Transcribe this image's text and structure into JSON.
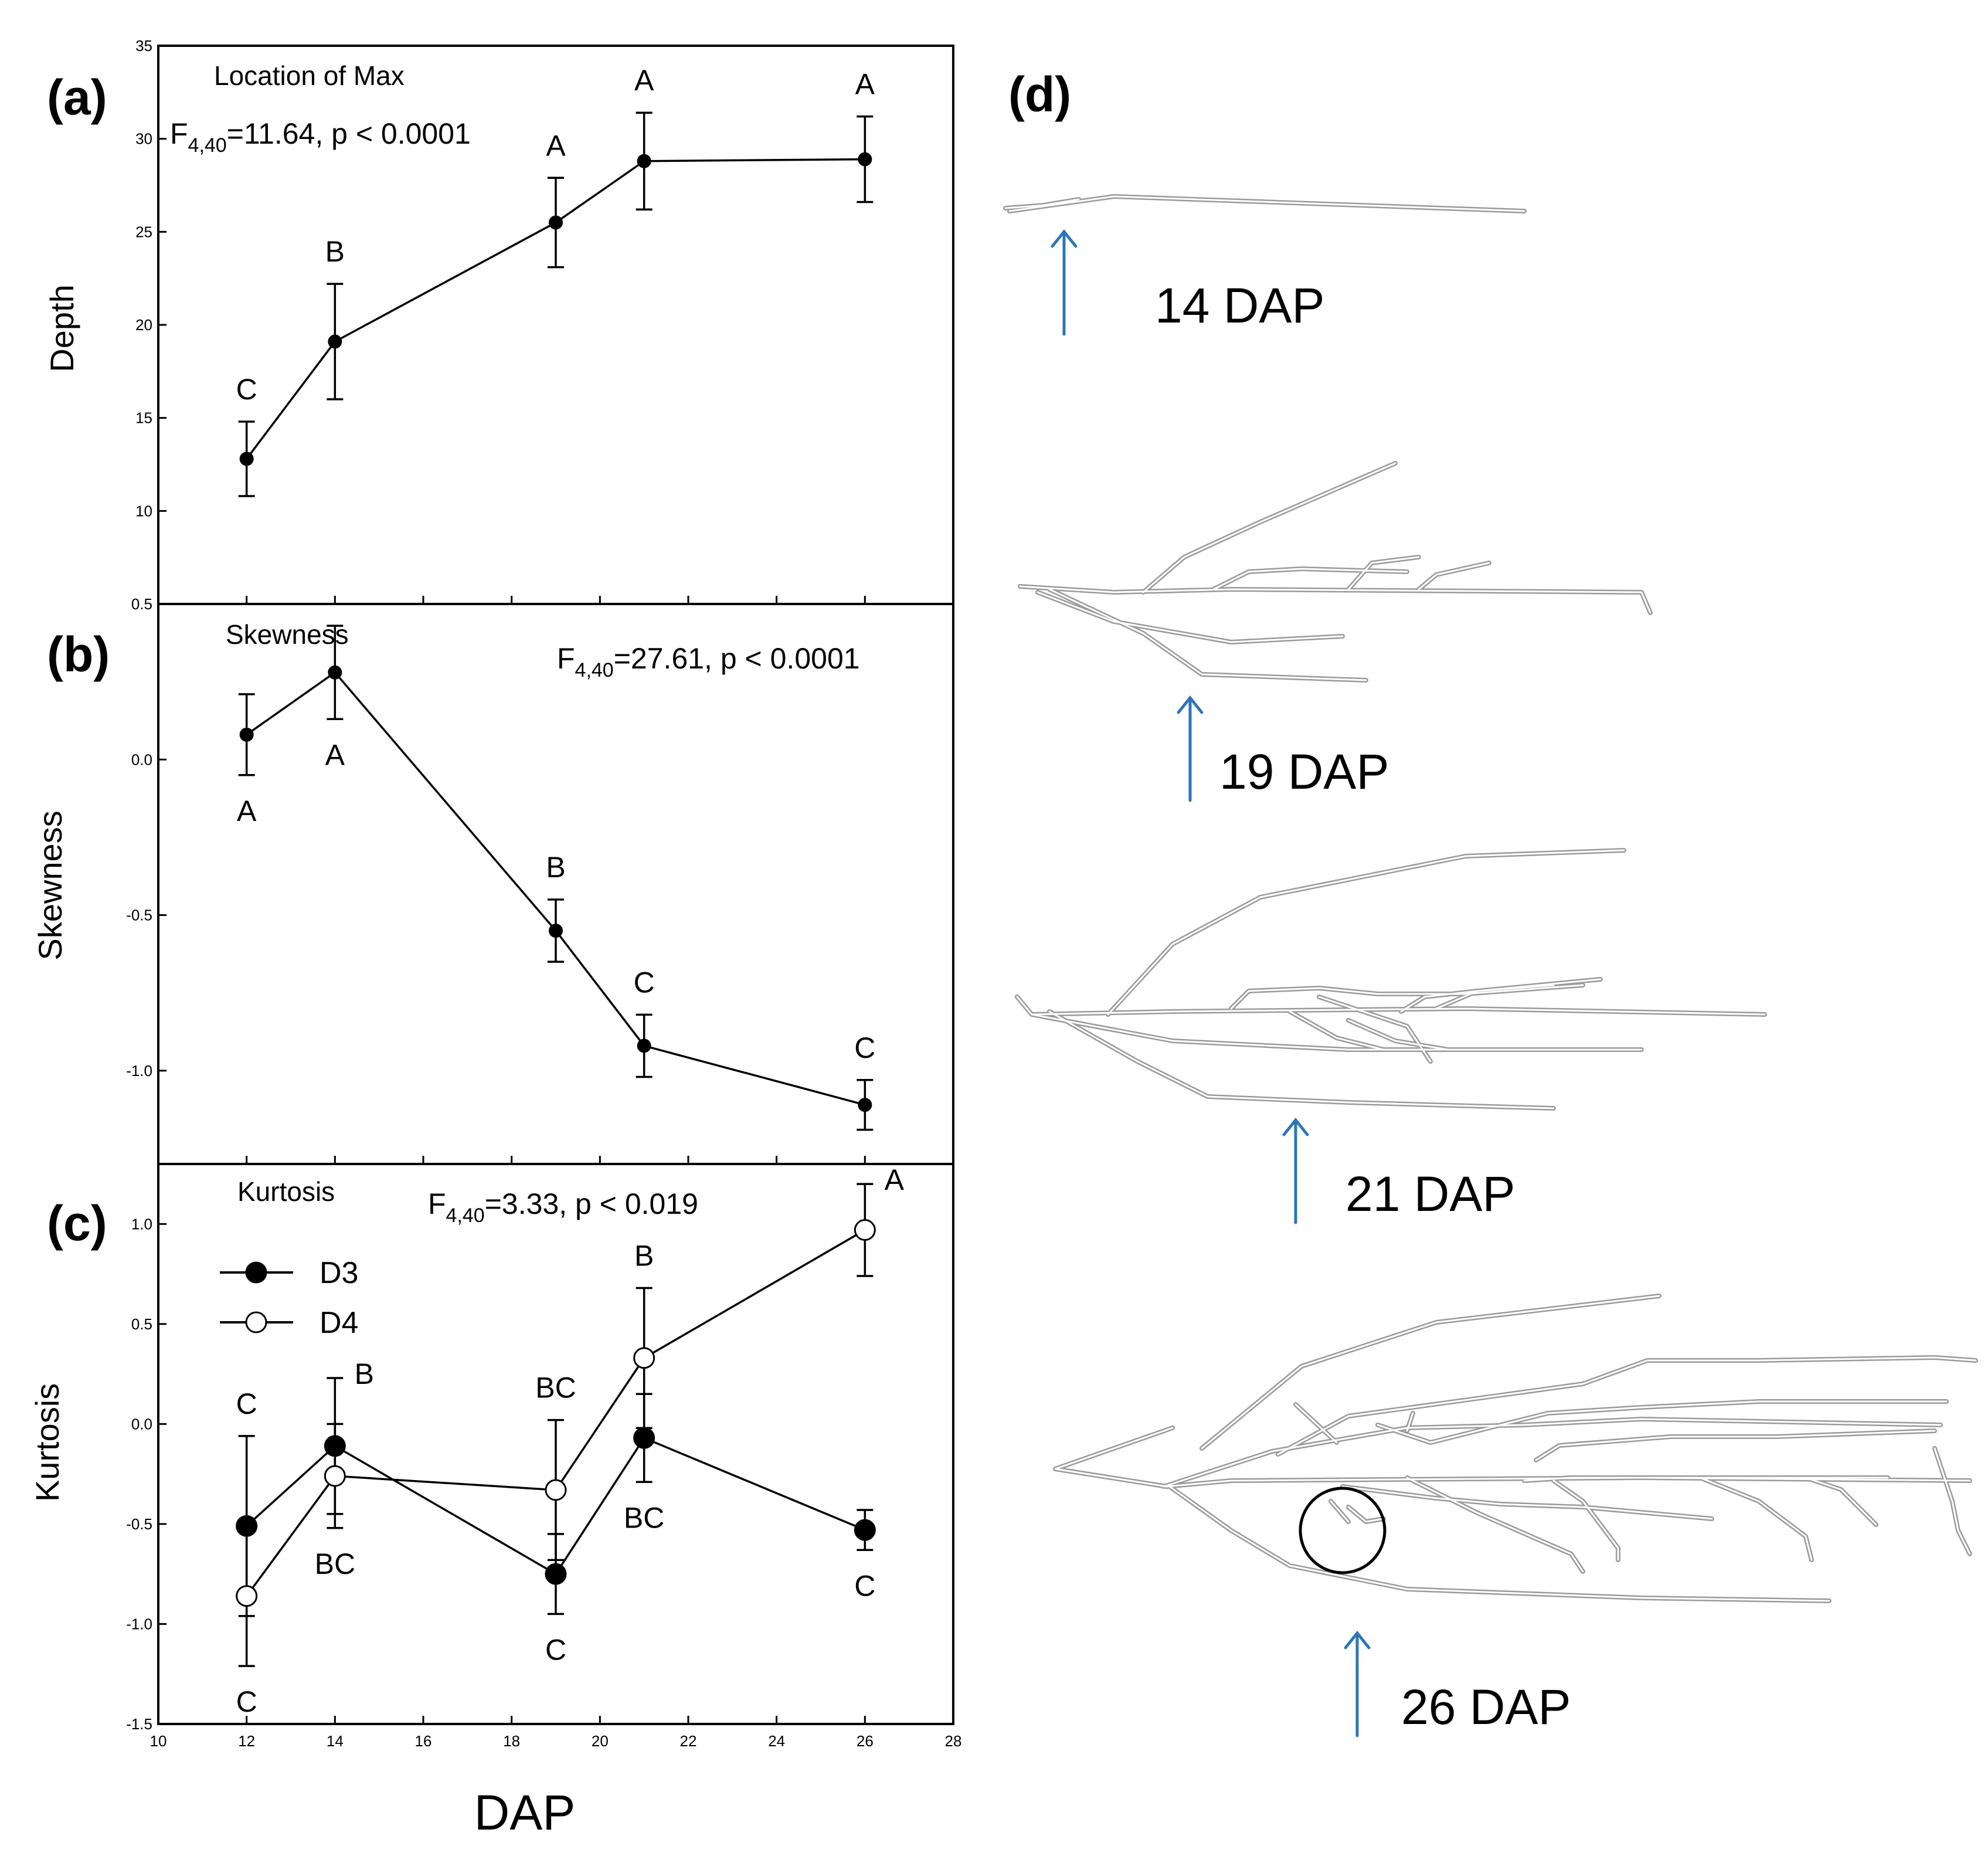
{
  "chart_data": [
    {
      "panel": "(a)",
      "type": "line",
      "title": "Location of Max",
      "stat": {
        "main": "F",
        "sub": "4,40",
        "rest": "=11.64, p < 0.0001"
      },
      "xlabel": "",
      "ylabel": "Depth",
      "xlim": [
        10,
        28
      ],
      "ylim": [
        5,
        35
      ],
      "yticks": [
        "10",
        "15",
        "20",
        "25",
        "30",
        "35"
      ],
      "series": [
        {
          "name": "Depth",
          "marker": "filled-small",
          "x": [
            12,
            14,
            19,
            21,
            26
          ],
          "y": [
            12.8,
            19.1,
            25.5,
            28.8,
            28.9
          ],
          "err": [
            2.0,
            3.1,
            2.4,
            2.6,
            2.3
          ],
          "letters": [
            "C",
            "B",
            "A",
            "A",
            "A"
          ],
          "letter_pos": [
            "above",
            "above",
            "above",
            "above",
            "above"
          ]
        }
      ]
    },
    {
      "panel": "(b)",
      "type": "line",
      "title": "Skewness",
      "stat": {
        "main": "F",
        "sub": "4,40",
        "rest": "=27.61, p < 0.0001"
      },
      "xlabel": "",
      "ylabel": "Skewness",
      "xlim": [
        10,
        28
      ],
      "ylim": [
        -1.3,
        0.5
      ],
      "yticks": [
        "-1.0",
        "-0.5",
        "0.0",
        "0.5"
      ],
      "series": [
        {
          "name": "Skewness",
          "marker": "filled-small",
          "x": [
            12,
            14,
            19,
            21,
            26
          ],
          "y": [
            0.08,
            0.28,
            -0.55,
            -0.92,
            -1.11
          ],
          "err": [
            0.13,
            0.15,
            0.1,
            0.1,
            0.08
          ],
          "letters": [
            "A",
            "A",
            "B",
            "C",
            "C"
          ],
          "letter_pos": [
            "below",
            "below",
            "above",
            "above",
            "above"
          ]
        }
      ]
    },
    {
      "panel": "(c)",
      "type": "line",
      "title": "Kurtosis",
      "stat": {
        "main": "F",
        "sub": "4,40",
        "rest": "=3.33, p < 0.019"
      },
      "xlabel": "DAP",
      "ylabel": "Kurtosis",
      "xlim": [
        10,
        28
      ],
      "ylim": [
        -1.5,
        1.3
      ],
      "yticks": [
        "-1.5",
        "-1.0",
        "-0.5",
        "0.0",
        "0.5",
        "1.0"
      ],
      "xticks": [
        "10",
        "12",
        "14",
        "16",
        "18",
        "20",
        "22",
        "24",
        "26",
        "28"
      ],
      "series": [
        {
          "name": "D3",
          "marker": "filled",
          "x": [
            12,
            14,
            19,
            21,
            26
          ],
          "y": [
            -0.51,
            -0.11,
            -0.75,
            -0.07,
            -0.53
          ],
          "err": [
            0.45,
            0.34,
            0.2,
            0.22,
            0.1
          ],
          "letters": [
            "C",
            "B",
            "C",
            "BC",
            "C"
          ],
          "letter_pos": [
            "above",
            "above-right",
            "below",
            "below",
            "below"
          ]
        },
        {
          "name": "D4",
          "marker": "open",
          "x": [
            12,
            14,
            19,
            21,
            26
          ],
          "y": [
            -0.86,
            -0.26,
            -0.33,
            0.33,
            0.97
          ],
          "err": [
            0.35,
            0.26,
            0.35,
            0.35,
            0.23
          ],
          "letters": [
            "C",
            "BC",
            "BC",
            "B",
            "A"
          ],
          "letter_pos": [
            "below",
            "below",
            "above",
            "above",
            "above-right"
          ]
        }
      ]
    }
  ],
  "panel_d": {
    "label": "(d)",
    "captions": [
      "14 DAP",
      "19 DAP",
      "21 DAP",
      "26 DAP"
    ],
    "arrow_color": "#2e75b6"
  }
}
